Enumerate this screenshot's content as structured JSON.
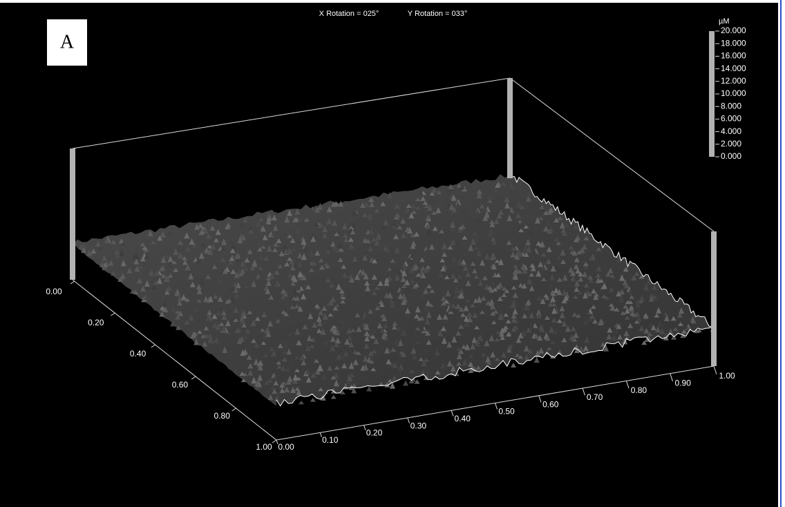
{
  "panel_label": "A",
  "header": {
    "x_rotation": "X Rotation = 025°",
    "y_rotation": "Y Rotation = 033°"
  },
  "color_scale": {
    "unit": "µM",
    "labels": [
      "20.000",
      "18.000",
      "16.000",
      "14.000",
      "12.000",
      "10.000",
      "8.000",
      "6.000",
      "4.000",
      "2.000",
      "0.000"
    ]
  },
  "left_axis": {
    "labels": [
      "0.00",
      "0.20",
      "0.40",
      "0.60",
      "0.80",
      "1.00"
    ]
  },
  "front_axis": {
    "labels": [
      "0.00",
      "0.10",
      "0.20",
      "0.30",
      "0.40",
      "0.50",
      "0.60",
      "0.70",
      "0.80",
      "0.90",
      "1.00"
    ]
  }
}
